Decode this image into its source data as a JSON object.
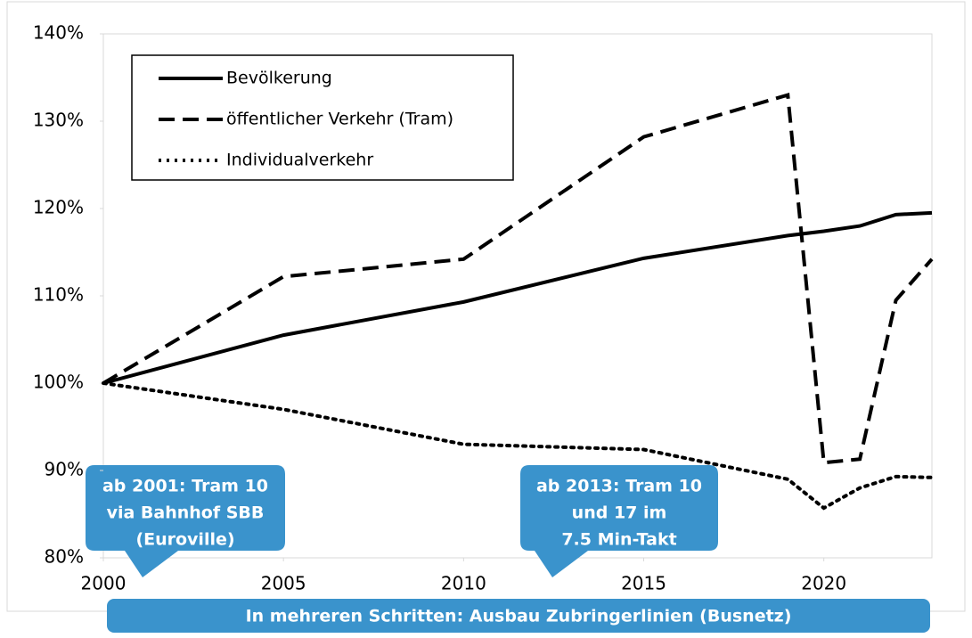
{
  "chart_data": {
    "type": "line",
    "x": [
      2000,
      2005,
      2010,
      2015,
      2019,
      2020,
      2021,
      2022,
      2023
    ],
    "series": [
      {
        "name": "Bevölkerung",
        "color": "#000000",
        "dash": "solid",
        "values": [
          100,
          105.5,
          109.3,
          114.3,
          116.9,
          117.4,
          118,
          119.3,
          119.5
        ]
      },
      {
        "name": "öffentlicher Verkehr (Tram)",
        "color": "#000000",
        "dash": "dashed",
        "values": [
          100,
          112.2,
          114.2,
          128.2,
          133,
          90.9,
          91.3,
          109.5,
          114.2
        ]
      },
      {
        "name": "Individualverkehr",
        "color": "#000000",
        "dash": "dotted",
        "values": [
          100,
          97,
          93,
          92.4,
          89,
          85.7,
          88,
          89.3,
          89.2
        ]
      }
    ],
    "xlim": [
      2000,
      2023
    ],
    "xticks": [
      2000,
      2005,
      2010,
      2015,
      2020
    ],
    "ylim": [
      80,
      140
    ],
    "yticks": [
      {
        "value": 80,
        "label": "80%"
      },
      {
        "value": 90,
        "label": "90%"
      },
      {
        "value": 100,
        "label": "100%"
      },
      {
        "value": 110,
        "label": "110%"
      },
      {
        "value": 120,
        "label": "120%"
      },
      {
        "value": 130,
        "label": "130%"
      },
      {
        "value": 140,
        "label": "140%"
      }
    ],
    "grid": false,
    "legend": "upper left",
    "annotations": [
      {
        "lines": [
          "ab 2001: Tram 10",
          "via Bahnhof SBB",
          "(Euroville)"
        ]
      },
      {
        "lines": [
          "ab 2013: Tram 10",
          "und 17 im",
          "7.5 Min-Takt"
        ]
      },
      {
        "lines": [
          "In mehreren Schritten: Ausbau Zubringerlinien (Busnetz)"
        ]
      }
    ]
  }
}
